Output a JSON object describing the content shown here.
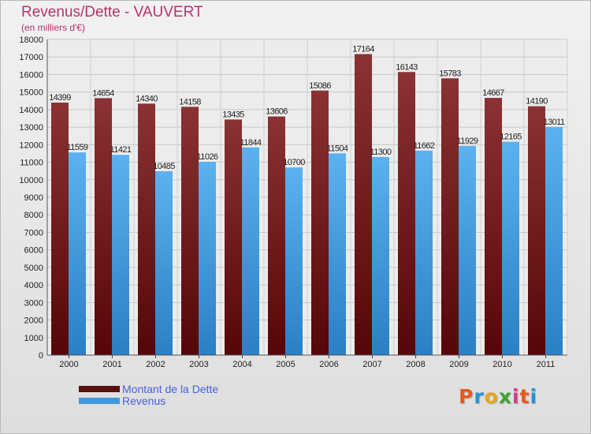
{
  "header": {
    "title": "Revenus/Dette - VAUVERT",
    "subtitle": "(en milliers d'€)"
  },
  "chart_data": {
    "type": "bar",
    "categories": [
      "2000",
      "2001",
      "2002",
      "2003",
      "2004",
      "2005",
      "2006",
      "2007",
      "2008",
      "2009",
      "2010",
      "2011"
    ],
    "series": [
      {
        "name": "Montant de la Dette",
        "color": "#7a1c1f",
        "values": [
          14399,
          14654,
          14340,
          14158,
          13435,
          13606,
          15086,
          17164,
          16143,
          15783,
          14667,
          14190
        ]
      },
      {
        "name": "Revenus",
        "color": "#3d9ae0",
        "values": [
          11559,
          11421,
          10485,
          11026,
          11844,
          10700,
          11504,
          11300,
          11662,
          11929,
          12165,
          13011
        ]
      }
    ],
    "ylim": [
      0,
      18000
    ],
    "yticks": [
      0,
      1000,
      2000,
      3000,
      4000,
      5000,
      6000,
      7000,
      8000,
      9000,
      10000,
      11000,
      12000,
      13000,
      14000,
      15000,
      16000,
      17000,
      18000
    ],
    "grid": true
  },
  "legend": {
    "items": [
      {
        "label": "Montant de la Dette",
        "color": "#5a0f10"
      },
      {
        "label": "Revenus",
        "color": "#3d9ae0"
      }
    ]
  },
  "logo": {
    "letters": [
      "P",
      "r",
      "o",
      "x",
      "i",
      "t",
      "i"
    ],
    "colors": [
      "#e8591c",
      "#2c8fd0",
      "#e8a51c",
      "#3aa635",
      "#d63b8c",
      "#e8591c",
      "#2c8fd0"
    ]
  }
}
